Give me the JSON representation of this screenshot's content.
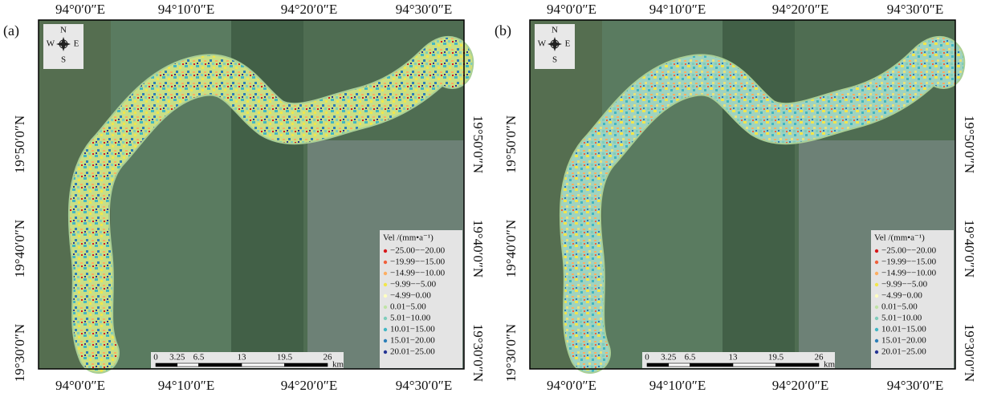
{
  "panels": [
    {
      "label": "(a)"
    },
    {
      "label": "(b)"
    }
  ],
  "top_labels": [
    "94°0′0″E",
    "94°10′0″E",
    "94°20′0″E",
    "94°30′0″E"
  ],
  "bottom_labels": [
    "94°0′0″E",
    "94°10′0″E",
    "94°20′0″E",
    "94°30′0″E"
  ],
  "left_labels": [
    "19°30′0″N",
    "19°40′0″N",
    "19°50′0″N"
  ],
  "right_labels": [
    "19°30′0″N",
    "19°40′0″N",
    "19°50′0″N"
  ],
  "compass": {
    "n": "N",
    "s": "S",
    "e": "E",
    "w": "W"
  },
  "legend": {
    "title": "Vel /(mm•a⁻¹)",
    "items": [
      {
        "label": "−25.00−−20.00",
        "color": "#d7191c"
      },
      {
        "label": "−19.99−−15.00",
        "color": "#f0603c"
      },
      {
        "label": "−14.99−−10.00",
        "color": "#fdae61"
      },
      {
        "label": "−9.99−−5.00",
        "color": "#f2e64a"
      },
      {
        "label": "−4.99−0.00",
        "color": "#ffffbf"
      },
      {
        "label": "0.01−5.00",
        "color": "#bfe3a6"
      },
      {
        "label": "5.01−10.00",
        "color": "#7fcdbb"
      },
      {
        "label": "10.01−15.00",
        "color": "#41b6c4"
      },
      {
        "label": "15.01−20.00",
        "color": "#2c7fb8"
      },
      {
        "label": "20.01−25.00",
        "color": "#253494"
      }
    ]
  },
  "scale_bar": {
    "ticks": [
      0,
      3.25,
      6.5,
      13,
      19.5,
      26
    ],
    "unit": "km"
  }
}
